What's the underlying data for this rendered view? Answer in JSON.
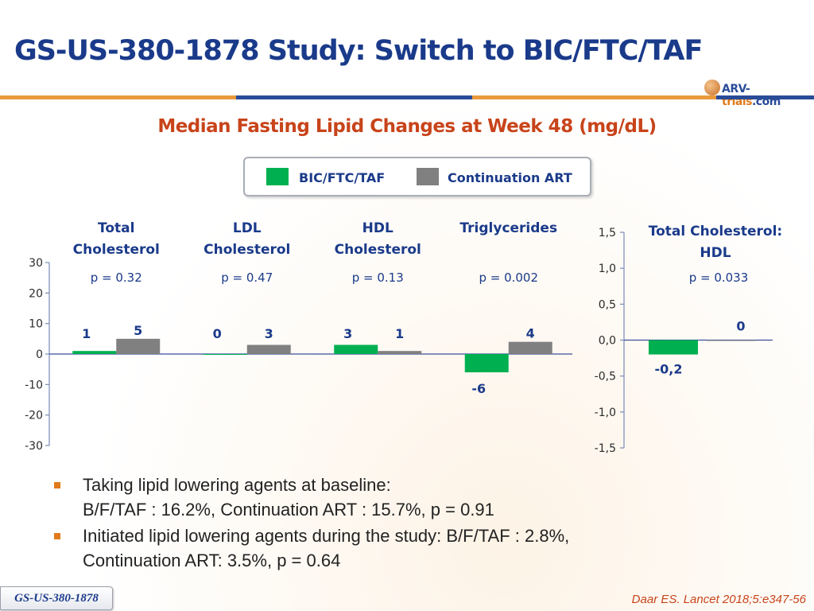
{
  "header": {
    "title": "GS-US-380-1878 Study: Switch to BIC/FTC/TAF",
    "logo": {
      "part1": "ARV-",
      "part2": "trials",
      "part3": ".com"
    }
  },
  "subtitle": "Median Fasting Lipid Changes at Week 48 (mg/dL)",
  "legend": [
    {
      "label": "BIC/FTC/TAF",
      "color": "#00b050"
    },
    {
      "label": "Continuation ART",
      "color": "#808080"
    }
  ],
  "chart_data": [
    {
      "type": "bar",
      "categories": [
        {
          "line1": "Total",
          "line2": "Cholesterol"
        },
        {
          "line1": "LDL",
          "line2": "Cholesterol"
        },
        {
          "line1": "HDL",
          "line2": "Cholesterol"
        },
        {
          "line1": "Triglycerides",
          "line2": ""
        }
      ],
      "p_values": [
        "p = 0.32",
        "p = 0.47",
        "p = 0.13",
        "p = 0.002"
      ],
      "series": [
        {
          "name": "BIC/FTC/TAF",
          "color": "#00b050",
          "values": [
            1,
            0,
            3,
            -6
          ],
          "labels": [
            "1",
            "0",
            "3",
            "-6"
          ]
        },
        {
          "name": "Continuation ART",
          "color": "#808080",
          "values": [
            5,
            3,
            1,
            4
          ],
          "labels": [
            "5",
            "3",
            "1",
            "4"
          ]
        }
      ],
      "ylim": [
        -30,
        30
      ],
      "yticks": [
        30,
        20,
        10,
        0,
        -10,
        -20,
        -30
      ],
      "ytick_labels": [
        "30",
        "20",
        "10",
        "0",
        "-10",
        "-20",
        "-30"
      ]
    },
    {
      "type": "bar",
      "title": "Total Cholesterol: HDL",
      "title_lines": [
        "Total Cholesterol:",
        "HDL"
      ],
      "p_value": "p = 0.033",
      "series": [
        {
          "name": "BIC/FTC/TAF",
          "color": "#00b050",
          "values": [
            -0.2
          ],
          "labels": [
            "-0,2"
          ]
        },
        {
          "name": "Continuation ART",
          "color": "#808080",
          "values": [
            0
          ],
          "labels": [
            "0"
          ]
        }
      ],
      "ylim": [
        -1.5,
        1.5
      ],
      "yticks": [
        1.5,
        1.0,
        0.5,
        0.0,
        -0.5,
        -1.0,
        -1.5
      ],
      "ytick_labels": [
        "1,5",
        "1,0",
        "0,5",
        "0,0",
        "-0,5",
        "-1,0",
        "-1,5"
      ]
    }
  ],
  "bullets": [
    {
      "line1": "Taking lipid lowering agents at baseline:",
      "line2": "B/F/TAF : 16.2%, Continuation ART : 15.7%, p = 0.91"
    },
    {
      "line1": "Initiated lipid lowering agents during the study:  B/F/TAF : 2.8%,",
      "line2": "Continuation ART: 3.5%, p = 0.64"
    }
  ],
  "footer": {
    "study_tag": "GS-US-380-1878",
    "citation": "Daar ES. Lancet 2018;5:e347-56"
  }
}
